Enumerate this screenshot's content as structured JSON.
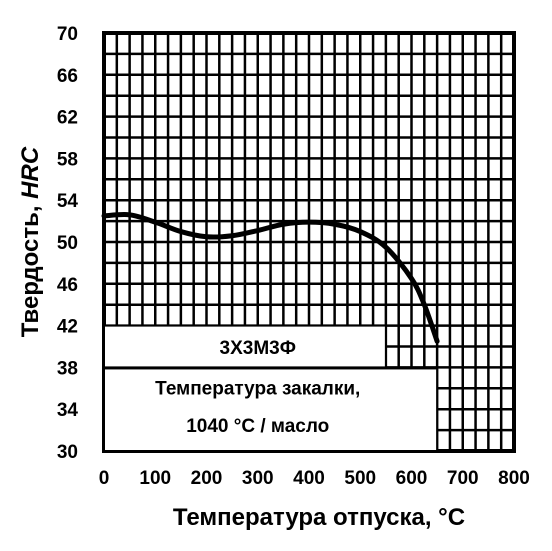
{
  "chart_data": {
    "type": "line",
    "xlabel": "Температура отпуска, °С",
    "ylabel_main": "Твердость, ",
    "ylabel_italic": "HRC",
    "xlim": [
      0,
      800
    ],
    "ylim": [
      30,
      70
    ],
    "x_ticks": [
      "0",
      "100",
      "200",
      "300",
      "400",
      "500",
      "600",
      "700",
      "800"
    ],
    "y_ticks": [
      "30",
      "34",
      "38",
      "42",
      "46",
      "50",
      "54",
      "58",
      "62",
      "66",
      "70"
    ],
    "grid": true,
    "series": [
      {
        "name": "3Х3М3Ф",
        "x": [
          0,
          50,
          100,
          150,
          200,
          250,
          300,
          350,
          400,
          450,
          500,
          550,
          600,
          625,
          650
        ],
        "y": [
          52.5,
          52.6,
          51.9,
          51.0,
          50.5,
          50.6,
          51.1,
          51.7,
          51.9,
          51.7,
          51.0,
          49.5,
          46.5,
          44.0,
          40.5
        ]
      }
    ],
    "annotations": {
      "steel_label": "3Х3М3Ф",
      "quench_line1": "Температура закалки,",
      "quench_line2": "1040 °С / масло"
    }
  }
}
